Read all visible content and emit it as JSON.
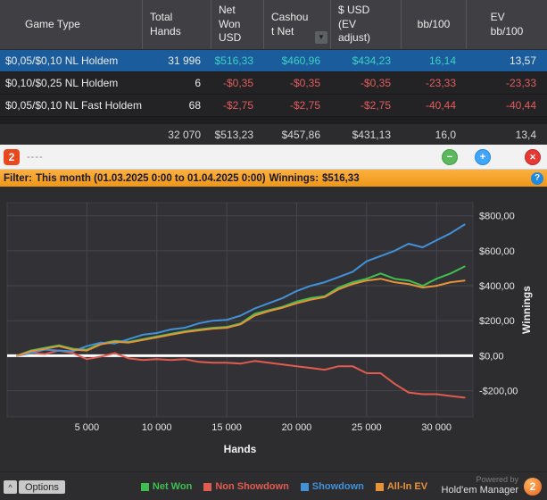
{
  "window": {
    "title": "----"
  },
  "icons": {
    "sort": "▼",
    "help": "?",
    "minimize": "−",
    "add": "+",
    "close": "✕",
    "chevron_up": "^"
  },
  "toolbar": {
    "logo_text": "2"
  },
  "table": {
    "headers": {
      "game_type": "Game Type",
      "total_hands": "Total\nHands",
      "net_won_usd": "Net\nWon\nUSD",
      "cashout_net": "Cashou\nt Net",
      "usd_ev_adjust": "$ USD\n(EV\nadjust)",
      "bb_100": "bb/100",
      "ev_bb_100": "EV\nbb/100"
    },
    "rows": [
      {
        "game_type": "$0,05/$0,10 NL Holdem",
        "total_hands": "31 996",
        "net_won_usd": "$516,33",
        "cashout_net": "$460,96",
        "usd_ev_adjust": "$434,23",
        "bb_100": "16,14",
        "ev_bb_100": "13,57"
      },
      {
        "game_type": "$0,10/$0,25 NL Holdem",
        "total_hands": "6",
        "net_won_usd": "-$0,35",
        "cashout_net": "-$0,35",
        "usd_ev_adjust": "-$0,35",
        "bb_100": "-23,33",
        "ev_bb_100": "-23,33"
      },
      {
        "game_type": "$0,05/$0,10 NL Fast Holdem",
        "total_hands": "68",
        "net_won_usd": "-$2,75",
        "cashout_net": "-$2,75",
        "usd_ev_adjust": "-$2,75",
        "bb_100": "-40,44",
        "ev_bb_100": "-40,44"
      }
    ],
    "total_row": {
      "total_hands": "32 070",
      "net_won_usd": "$513,23",
      "cashout_net": "$457,86",
      "usd_ev_adjust": "$431,13",
      "bb_100": "16,0",
      "ev_bb_100": "13,4"
    }
  },
  "filter_bar": {
    "label": "Filter:",
    "range_text": "This month (01.03.2025 0:00 to 01.04.2025 0:00)",
    "winnings_label": "Winnings:",
    "winnings_value": "$516,33"
  },
  "chart_data": {
    "type": "line",
    "title": "",
    "xlabel": "Hands",
    "ylabel": "Winnings",
    "xlim": [
      -700,
      32600
    ],
    "ylim": [
      -350,
      875
    ],
    "grid": true,
    "legend_position": "bottom",
    "x_ticks": [
      {
        "value": 5000,
        "label": "5 000"
      },
      {
        "value": 10000,
        "label": "10 000"
      },
      {
        "value": 15000,
        "label": "15 000"
      },
      {
        "value": 20000,
        "label": "20 000"
      },
      {
        "value": 25000,
        "label": "25 000"
      },
      {
        "value": 30000,
        "label": "30 000"
      }
    ],
    "y_ticks": [
      {
        "value": 800,
        "label": "$800,00"
      },
      {
        "value": 600,
        "label": "$600,00"
      },
      {
        "value": 400,
        "label": "$400,00"
      },
      {
        "value": 200,
        "label": "$200,00"
      },
      {
        "value": 0,
        "label": "$0,00"
      },
      {
        "value": -200,
        "label": "-$200,00"
      }
    ],
    "x": [
      0,
      1000,
      2000,
      3000,
      4000,
      5000,
      6000,
      7000,
      8000,
      9000,
      10000,
      11000,
      12000,
      13000,
      14000,
      15000,
      16000,
      17000,
      18000,
      19000,
      20000,
      21000,
      22000,
      23000,
      24000,
      25000,
      26000,
      27000,
      28000,
      29000,
      30000,
      31000,
      32000
    ],
    "series": [
      {
        "name": "Net Won",
        "color": "#3fbf4f",
        "values": [
          0,
          30,
          45,
          60,
          40,
          35,
          70,
          85,
          80,
          95,
          110,
          125,
          140,
          150,
          160,
          165,
          185,
          240,
          260,
          280,
          310,
          330,
          340,
          390,
          420,
          440,
          470,
          440,
          430,
          400,
          440,
          470,
          510
        ]
      },
      {
        "name": "Non Showdown",
        "color": "#e25b50",
        "values": [
          0,
          15,
          10,
          30,
          15,
          -20,
          -5,
          15,
          -15,
          -25,
          -20,
          -25,
          -20,
          -35,
          -40,
          -40,
          -45,
          -30,
          -40,
          -50,
          -60,
          -70,
          -80,
          -60,
          -60,
          -100,
          -100,
          -160,
          -210,
          -220,
          -220,
          -230,
          -240
        ]
      },
      {
        "name": "Showdown",
        "color": "#4292d8",
        "values": [
          0,
          15,
          35,
          30,
          25,
          55,
          75,
          70,
          95,
          120,
          130,
          150,
          160,
          185,
          200,
          205,
          230,
          270,
          300,
          330,
          370,
          400,
          420,
          450,
          480,
          540,
          570,
          600,
          640,
          620,
          660,
          700,
          750
        ]
      },
      {
        "name": "All-In EV",
        "color": "#e8923a",
        "values": [
          0,
          25,
          40,
          55,
          35,
          30,
          65,
          80,
          75,
          90,
          105,
          120,
          135,
          145,
          155,
          160,
          180,
          230,
          255,
          275,
          300,
          320,
          335,
          380,
          410,
          430,
          440,
          420,
          410,
          390,
          400,
          420,
          430
        ]
      }
    ]
  },
  "footer": {
    "options_label": "Options",
    "powered_by": "Powered by",
    "brand": "Hold'em Manager",
    "brand_logo_text": "2"
  },
  "colors": {
    "positive": "#3fd1c4",
    "negative": "#e25d5d",
    "selected_row": "#1b5c9c",
    "filter_bar": "#f5a623"
  }
}
